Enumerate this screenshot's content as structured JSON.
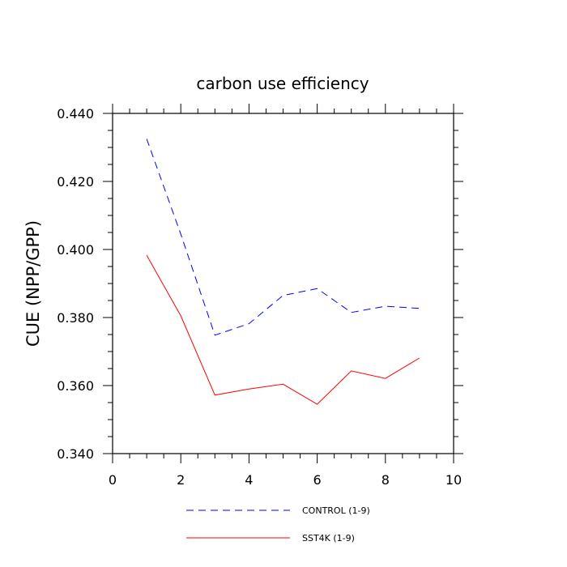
{
  "chart_data": {
    "type": "line",
    "title": "carbon use efficiency",
    "xlabel": "",
    "ylabel": "CUE  (NPP/GPP)",
    "xlim": [
      0,
      10
    ],
    "ylim": [
      0.34,
      0.44
    ],
    "x_ticks": [
      0,
      2,
      4,
      6,
      8,
      10
    ],
    "x_tick_labels": [
      "0",
      "2",
      "4",
      "6",
      "8",
      "10"
    ],
    "y_ticks": [
      0.34,
      0.36,
      0.38,
      0.4,
      0.42,
      0.44
    ],
    "y_tick_labels": [
      "0.340",
      "0.360",
      "0.380",
      "0.400",
      "0.420",
      "0.440"
    ],
    "grid": false,
    "legend_position": "bottom",
    "series": [
      {
        "name": "CONTROL (1-9)",
        "color": "#0000ff",
        "style": "dashed",
        "x": [
          1,
          2,
          3,
          4,
          5,
          6,
          7,
          8,
          9
        ],
        "values": [
          0.4325,
          0.4045,
          0.3748,
          0.3782,
          0.3865,
          0.3885,
          0.3815,
          0.3833,
          0.3827
        ]
      },
      {
        "name": "SST4K (1-9)",
        "color": "#ff0000",
        "style": "solid",
        "x": [
          1,
          2,
          3,
          4,
          5,
          6,
          7,
          8,
          9
        ],
        "values": [
          0.3983,
          0.3805,
          0.3572,
          0.359,
          0.3604,
          0.3545,
          0.3643,
          0.3621,
          0.3681
        ]
      }
    ]
  }
}
